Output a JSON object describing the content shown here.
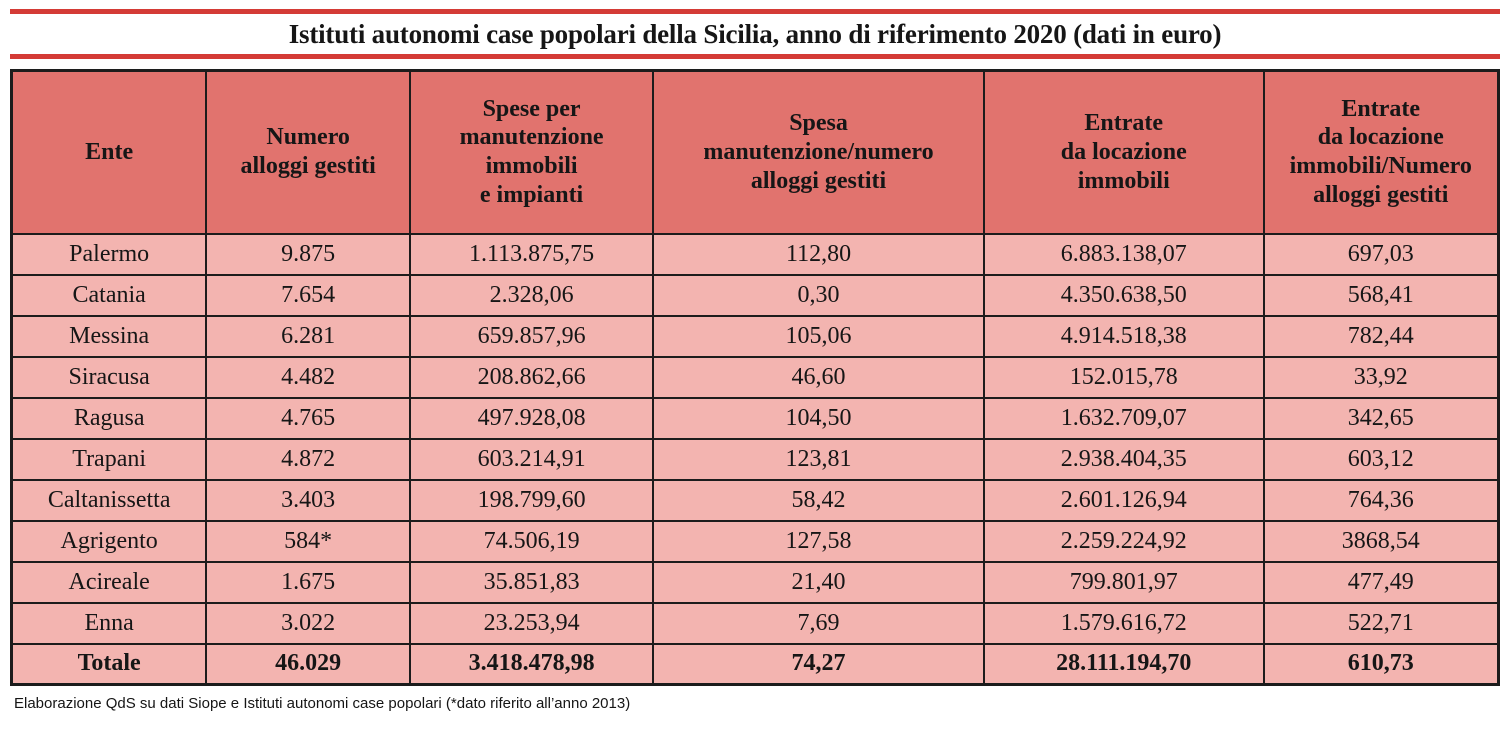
{
  "title": "Istituti autonomi case popolari della Sicilia, anno di riferimento 2020 (dati in euro)",
  "footnote": "Elaborazione QdS su dati Siope e Istituti autonomi case popolari (*dato riferito all’anno 2013)",
  "colors": {
    "bar_red": "#d43b36",
    "header_bg": "#e1736e",
    "row_bg": "#f3b4b0",
    "border": "#1c1c1c"
  },
  "table": {
    "columns": [
      "Ente",
      "Numero\nalloggi gestiti",
      "Spese per\nmanutenzione\nimmobili\ne impianti",
      "Spesa\nmanutenzione/numero\nalloggi gestiti",
      "Entrate\nda locazione\nimmobili",
      "Entrate\nda locazione\nimmobili/Numero\nalloggi gestiti"
    ],
    "rows": [
      [
        "Palermo",
        "9.875",
        "1.113.875,75",
        "112,80",
        "6.883.138,07",
        "697,03"
      ],
      [
        "Catania",
        "7.654",
        "2.328,06",
        "0,30",
        "4.350.638,50",
        "568,41"
      ],
      [
        "Messina",
        "6.281",
        "659.857,96",
        "105,06",
        "4.914.518,38",
        "782,44"
      ],
      [
        "Siracusa",
        "4.482",
        "208.862,66",
        "46,60",
        "152.015,78",
        "33,92"
      ],
      [
        "Ragusa",
        "4.765",
        "497.928,08",
        "104,50",
        "1.632.709,07",
        "342,65"
      ],
      [
        "Trapani",
        "4.872",
        "603.214,91",
        "123,81",
        "2.938.404,35",
        "603,12"
      ],
      [
        "Caltanissetta",
        "3.403",
        "198.799,60",
        "58,42",
        "2.601.126,94",
        "764,36"
      ],
      [
        "Agrigento",
        "584*",
        "74.506,19",
        "127,58",
        "2.259.224,92",
        "3868,54"
      ],
      [
        "Acireale",
        "1.675",
        "35.851,83",
        "21,40",
        "799.801,97",
        "477,49"
      ],
      [
        "Enna",
        "3.022",
        "23.253,94",
        "7,69",
        "1.579.616,72",
        "522,71"
      ]
    ],
    "total_row": [
      "Totale",
      "46.029",
      "3.418.478,98",
      "74,27",
      "28.111.194,70",
      "610,73"
    ]
  },
  "chart_data": {
    "type": "table",
    "title": "Istituti autonomi case popolari della Sicilia, anno di riferimento 2020 (dati in euro)",
    "columns": [
      "Ente",
      "Numero alloggi gestiti",
      "Spese per manutenzione immobili e impianti",
      "Spesa manutenzione/numero alloggi gestiti",
      "Entrate da locazione immobili",
      "Entrate da locazione immobili/Numero alloggi gestiti"
    ],
    "rows": [
      [
        "Palermo",
        "9.875",
        "1.113.875,75",
        "112,80",
        "6.883.138,07",
        "697,03"
      ],
      [
        "Catania",
        "7.654",
        "2.328,06",
        "0,30",
        "4.350.638,50",
        "568,41"
      ],
      [
        "Messina",
        "6.281",
        "659.857,96",
        "105,06",
        "4.914.518,38",
        "782,44"
      ],
      [
        "Siracusa",
        "4.482",
        "208.862,66",
        "46,60",
        "152.015,78",
        "33,92"
      ],
      [
        "Ragusa",
        "4.765",
        "497.928,08",
        "104,50",
        "1.632.709,07",
        "342,65"
      ],
      [
        "Trapani",
        "4.872",
        "603.214,91",
        "123,81",
        "2.938.404,35",
        "603,12"
      ],
      [
        "Caltanissetta",
        "3.403",
        "198.799,60",
        "58,42",
        "2.601.126,94",
        "764,36"
      ],
      [
        "Agrigento",
        "584*",
        "74.506,19",
        "127,58",
        "2.259.224,92",
        "3868,54"
      ],
      [
        "Acireale",
        "1.675",
        "35.851,83",
        "21,40",
        "799.801,97",
        "477,49"
      ],
      [
        "Enna",
        "3.022",
        "23.253,94",
        "7,69",
        "1.579.616,72",
        "522,71"
      ],
      [
        "Totale",
        "46.029",
        "3.418.478,98",
        "74,27",
        "28.111.194,70",
        "610,73"
      ]
    ],
    "footnote": "Elaborazione QdS su dati Siope e Istituti autonomi case popolari (*dato riferito all’anno 2013)"
  }
}
